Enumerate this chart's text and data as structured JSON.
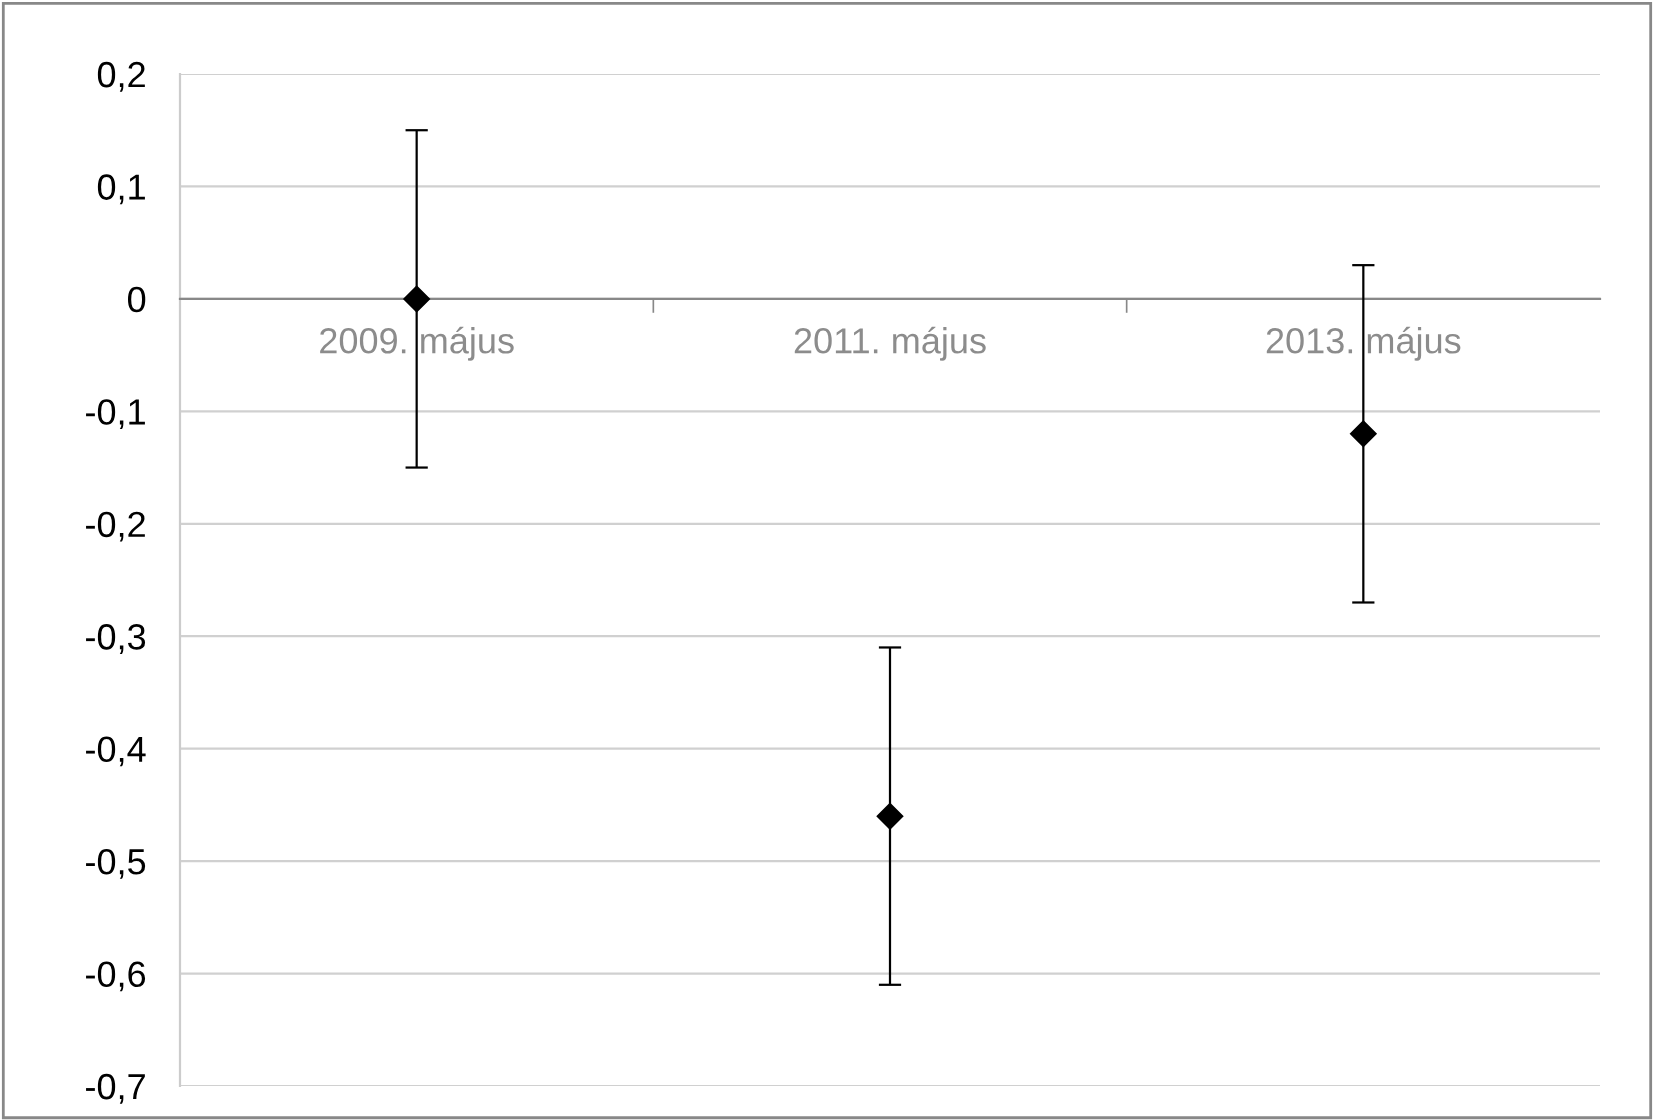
{
  "chart_data": {
    "type": "scatter",
    "categories": [
      "2009. május",
      "2011. május",
      "2013. május"
    ],
    "series": [
      {
        "color": "#000000",
        "values": [
          0,
          -0.46,
          -0.12
        ],
        "errors": [
          0.15,
          0.15,
          0.15
        ]
      }
    ],
    "ylim": [
      -0.7,
      0.2
    ],
    "yticks": [
      {
        "value": -0.7,
        "label": "-0,7"
      },
      {
        "value": -0.6,
        "label": "-0,6"
      },
      {
        "value": -0.5,
        "label": "-0,5"
      },
      {
        "value": -0.4,
        "label": "-0,4"
      },
      {
        "value": -0.3,
        "label": "-0,3"
      },
      {
        "value": -0.2,
        "label": "-0,2"
      },
      {
        "value": -0.1,
        "label": "-0,1"
      },
      0,
      {
        "value": 0.1,
        "label": "0,1"
      },
      {
        "value": 0.2,
        "label": "0,2"
      }
    ],
    "grid": "y",
    "marker": "diamond",
    "legend": false
  }
}
